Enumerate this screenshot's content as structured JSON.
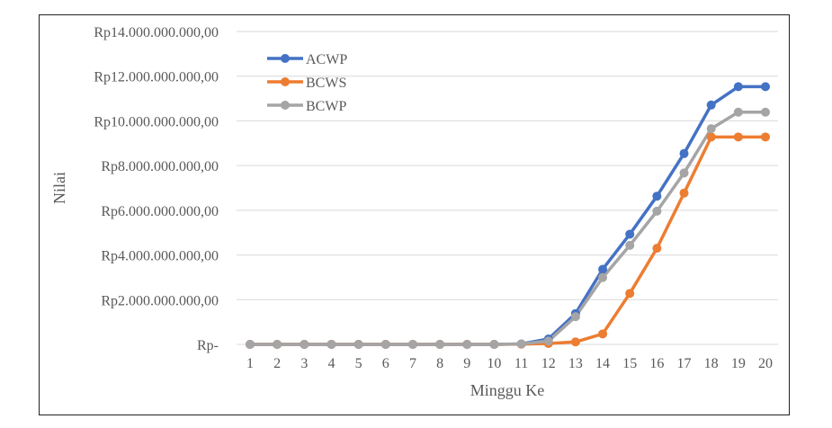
{
  "chart_data": {
    "type": "line",
    "title": "",
    "xlabel": "Minggu Ke",
    "ylabel": "Nilai",
    "x": [
      1,
      2,
      3,
      4,
      5,
      6,
      7,
      8,
      9,
      10,
      11,
      12,
      13,
      14,
      15,
      16,
      17,
      18,
      19,
      20
    ],
    "ylim": [
      0,
      14000000000
    ],
    "yticks": [
      0,
      2000000000,
      4000000000,
      6000000000,
      8000000000,
      10000000000,
      12000000000,
      14000000000
    ],
    "ytick_labels": [
      "Rp-",
      "Rp2.000.000.000,00",
      "Rp4.000.000.000,00",
      "Rp6.000.000.000,00",
      "Rp8.000.000.000,00",
      "Rp10.000.000.000,00",
      "Rp12.000.000.000,00",
      "Rp14.000.000.000,00"
    ],
    "grid": true,
    "legend_position": "top-left",
    "series": [
      {
        "name": "ACWP",
        "color": "#4472C4",
        "values": [
          0,
          0,
          0,
          0,
          0,
          0,
          0,
          0,
          0,
          0,
          20000000,
          240000000,
          1380000000,
          3360000000,
          4930000000,
          6630000000,
          8540000000,
          10710000000,
          11530000000,
          11530000000
        ]
      },
      {
        "name": "BCWS",
        "color": "#ED7D31",
        "values": [
          0,
          0,
          0,
          0,
          0,
          0,
          0,
          0,
          0,
          0,
          10000000,
          40000000,
          110000000,
          470000000,
          2280000000,
          4300000000,
          6770000000,
          9280000000,
          9280000000,
          9280000000
        ]
      },
      {
        "name": "BCWP",
        "color": "#A5A5A5",
        "values": [
          0,
          0,
          0,
          0,
          0,
          0,
          0,
          0,
          0,
          0,
          20000000,
          150000000,
          1240000000,
          2990000000,
          4430000000,
          5960000000,
          7670000000,
          9650000000,
          10390000000,
          10390000000
        ]
      }
    ]
  }
}
